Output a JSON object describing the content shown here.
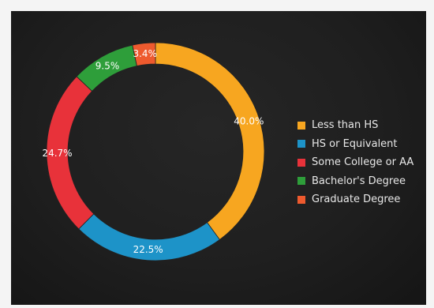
{
  "chart_data": {
    "type": "pie",
    "variant": "donut",
    "title": "",
    "categories": [
      "Less than HS",
      "HS or Equivalent",
      "Some College or AA",
      "Bachelor's Degree",
      "Graduate Degree"
    ],
    "values": [
      40.0,
      22.5,
      24.7,
      9.5,
      3.4
    ],
    "data_labels": [
      "40.0%",
      "22.5%",
      "24.7%",
      "9.5%",
      "3.4%"
    ],
    "colors": [
      "#f7a620",
      "#1d93c8",
      "#e8323a",
      "#2e9e3a",
      "#ee5a2e"
    ],
    "legend": {
      "position": "right",
      "entries": [
        "Less than HS",
        "HS or Equivalent",
        "Some College or AA",
        "Bachelor's Degree",
        "Graduate Degree"
      ]
    },
    "background": "#1f1f1f"
  }
}
